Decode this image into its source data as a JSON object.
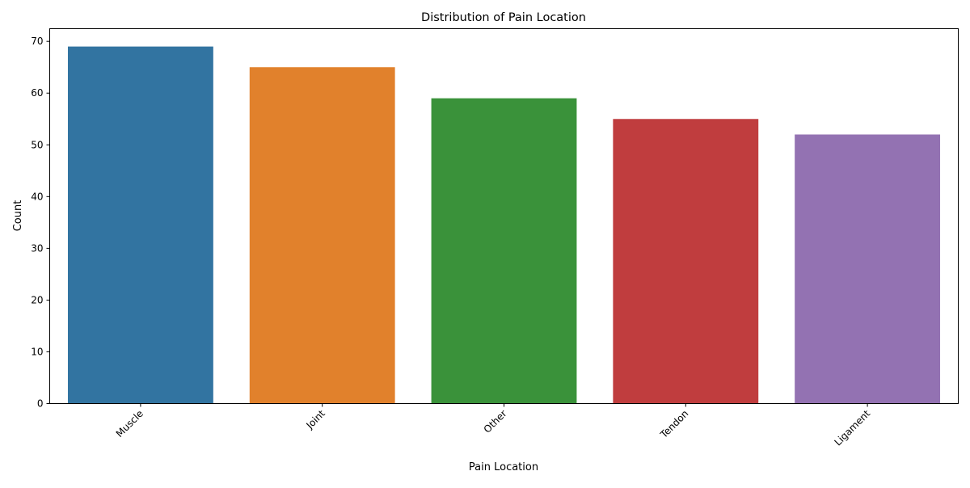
{
  "chart_data": {
    "type": "bar",
    "title": "Distribution of Pain Location",
    "xlabel": "Pain Location",
    "ylabel": "Count",
    "categories": [
      "Muscle",
      "Joint",
      "Other",
      "Tendon",
      "Ligament"
    ],
    "values": [
      69,
      65,
      59,
      55,
      52
    ],
    "colors": [
      "#3274a1",
      "#e1812c",
      "#3a923a",
      "#c03d3e",
      "#9372b2"
    ],
    "ylim": [
      0,
      72.45
    ],
    "yticks": [
      0,
      10,
      20,
      30,
      40,
      50,
      60,
      70
    ],
    "grid": false,
    "legend": "none"
  }
}
